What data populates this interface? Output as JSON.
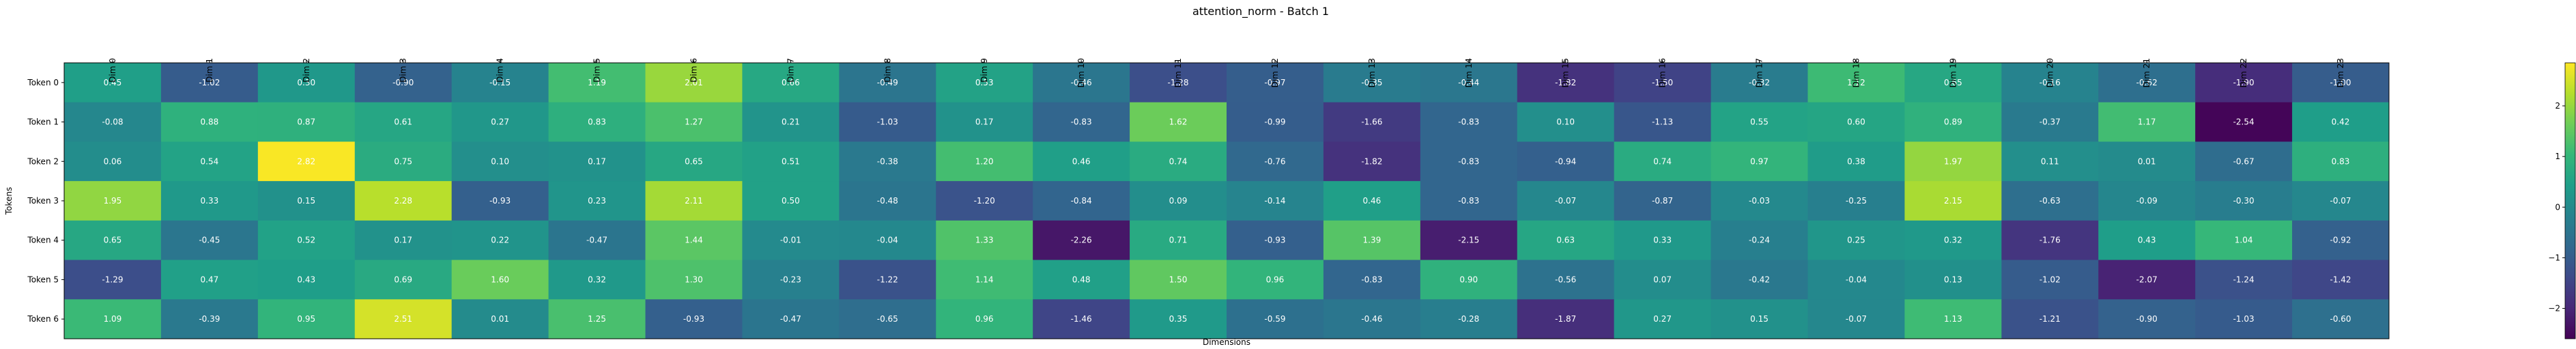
{
  "chart_data": {
    "type": "heatmap",
    "title": "attention_norm - Batch 1",
    "xlabel": "Dimensions",
    "ylabel": "Tokens",
    "x_labels": [
      "Dim 0",
      "Dim 1",
      "Dim 2",
      "Dim 3",
      "Dim 4",
      "Dim 5",
      "Dim 6",
      "Dim 7",
      "Dim 8",
      "Dim 9",
      "Dim 10",
      "Dim 11",
      "Dim 12",
      "Dim 13",
      "Dim 14",
      "Dim 15",
      "Dim 16",
      "Dim 17",
      "Dim 18",
      "Dim 19",
      "Dim 20",
      "Dim 21",
      "Dim 22",
      "Dim 23"
    ],
    "y_labels": [
      "Token 0",
      "Token 1",
      "Token 2",
      "Token 3",
      "Token 4",
      "Token 5",
      "Token 6"
    ],
    "values": [
      [
        0.45,
        -1.02,
        0.3,
        -0.9,
        -0.15,
        1.19,
        2.01,
        0.66,
        -0.49,
        0.53,
        -0.46,
        -1.28,
        -0.97,
        -0.35,
        -0.44,
        -1.82,
        -1.5,
        -0.32,
        1.12,
        0.65,
        -0.16,
        -0.62,
        -1.9,
        -1.0
      ],
      [
        -0.08,
        0.88,
        0.87,
        0.61,
        0.27,
        0.83,
        1.27,
        0.21,
        -1.03,
        0.17,
        -0.83,
        1.62,
        -0.99,
        -1.66,
        -0.83,
        0.1,
        -1.13,
        0.55,
        0.6,
        0.89,
        -0.37,
        1.17,
        -2.54,
        0.42
      ],
      [
        0.06,
        0.54,
        2.82,
        0.75,
        0.1,
        0.17,
        0.65,
        0.51,
        -0.38,
        1.2,
        0.46,
        0.74,
        -0.76,
        -1.82,
        -0.83,
        -0.94,
        0.74,
        0.97,
        0.38,
        1.97,
        0.11,
        0.01,
        -0.67,
        0.83
      ],
      [
        1.95,
        0.33,
        0.15,
        2.28,
        -0.93,
        0.23,
        2.11,
        0.5,
        -0.48,
        -1.2,
        -0.84,
        0.09,
        -0.14,
        0.46,
        -0.83,
        -0.07,
        -0.87,
        -0.03,
        -0.25,
        2.15,
        -0.63,
        -0.09,
        -0.3,
        -0.07
      ],
      [
        0.65,
        -0.45,
        0.52,
        0.17,
        0.22,
        -0.47,
        1.44,
        -0.01,
        -0.04,
        1.33,
        -2.26,
        0.71,
        -0.93,
        1.39,
        -2.15,
        0.63,
        0.33,
        -0.24,
        0.25,
        0.32,
        -1.76,
        0.43,
        1.04,
        -0.92
      ],
      [
        -1.29,
        0.47,
        0.43,
        0.69,
        1.6,
        0.32,
        1.3,
        -0.23,
        -1.22,
        1.14,
        0.48,
        1.5,
        0.96,
        -0.83,
        0.9,
        -0.56,
        0.07,
        -0.42,
        -0.04,
        0.13,
        -1.02,
        -2.07,
        -1.24,
        -1.42
      ],
      [
        1.09,
        -0.39,
        0.95,
        2.51,
        0.01,
        1.25,
        -0.93,
        -0.47,
        -0.65,
        0.96,
        -1.46,
        0.35,
        -0.59,
        -0.46,
        -0.28,
        -1.87,
        0.27,
        0.15,
        -0.07,
        1.13,
        -1.21,
        -0.9,
        -1.03,
        -0.6
      ]
    ],
    "value_labels": [
      [
        "0.45",
        "-1.02",
        "0.30",
        "-0.90",
        "-0.15",
        "1.19",
        "2.01",
        "0.66",
        "-0.49",
        "0.53",
        "-0.46",
        "-1.28",
        "-0.97",
        "-0.35",
        "-0.44",
        "-1.82",
        "-1.50",
        "-0.32",
        "1.12",
        "0.65",
        "-0.16",
        "-0.62",
        "-1.90",
        "-1.00"
      ],
      [
        "-0.08",
        "0.88",
        "0.87",
        "0.61",
        "0.27",
        "0.83",
        "1.27",
        "0.21",
        "-1.03",
        "0.17",
        "-0.83",
        "1.62",
        "-0.99",
        "-1.66",
        "-0.83",
        "0.10",
        "-1.13",
        "0.55",
        "0.60",
        "0.89",
        "-0.37",
        "1.17",
        "-2.54",
        "0.42"
      ],
      [
        "0.06",
        "0.54",
        "2.82",
        "0.75",
        "0.10",
        "0.17",
        "0.65",
        "0.51",
        "-0.38",
        "1.20",
        "0.46",
        "0.74",
        "-0.76",
        "-1.82",
        "-0.83",
        "-0.94",
        "0.74",
        "0.97",
        "0.38",
        "1.97",
        "0.11",
        "0.01",
        "-0.67",
        "0.83"
      ],
      [
        "1.95",
        "0.33",
        "0.15",
        "2.28",
        "-0.93",
        "0.23",
        "2.11",
        "0.50",
        "-0.48",
        "-1.20",
        "-0.84",
        "0.09",
        "-0.14",
        "0.46",
        "-0.83",
        "-0.07",
        "-0.87",
        "-0.03",
        "-0.25",
        "2.15",
        "-0.63",
        "-0.09",
        "-0.30",
        "-0.07"
      ],
      [
        "0.65",
        "-0.45",
        "0.52",
        "0.17",
        "0.22",
        "-0.47",
        "1.44",
        "-0.01",
        "-0.04",
        "1.33",
        "-2.26",
        "0.71",
        "-0.93",
        "1.39",
        "-2.15",
        "0.63",
        "0.33",
        "-0.24",
        "0.25",
        "0.32",
        "-1.76",
        "0.43",
        "1.04",
        "-0.92"
      ],
      [
        "-1.29",
        "0.47",
        "0.43",
        "0.69",
        "1.60",
        "0.32",
        "1.30",
        "-0.23",
        "-1.22",
        "1.14",
        "0.48",
        "1.50",
        "0.96",
        "-0.83",
        "0.90",
        "-0.56",
        "0.07",
        "-0.42",
        "-0.04",
        "0.13",
        "-1.02",
        "-2.07",
        "-1.24",
        "-1.42"
      ],
      [
        "1.09",
        "-0.39",
        "0.95",
        "2.51",
        "0.01",
        "1.25",
        "-0.93",
        "-0.47",
        "-0.65",
        "0.96",
        "-1.46",
        "0.35",
        "-0.59",
        "-0.46",
        "-0.28",
        "-1.87",
        "0.27",
        "0.15",
        "-0.07",
        "1.13",
        "-1.21",
        "-0.90",
        "-1.03",
        "-0.60"
      ]
    ],
    "colormap": "viridis",
    "vmin": -2.6,
    "vmax": 2.85,
    "colorbar_ticks": [
      2,
      1,
      0,
      -1,
      -2
    ],
    "colorbar_tick_labels": [
      "2",
      "1",
      "0",
      "−1",
      "−2"
    ],
    "annotation_color": "#ffffff",
    "grid": false,
    "legend": "colorbar-right"
  }
}
